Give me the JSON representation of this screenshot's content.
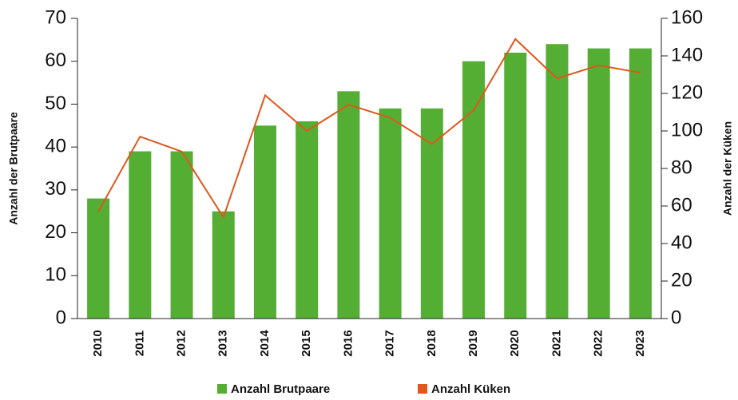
{
  "chart_data": {
    "type": "bar",
    "categories": [
      "2010",
      "2011",
      "2012",
      "2013",
      "2014",
      "2015",
      "2016",
      "2017",
      "2018",
      "2019",
      "2020",
      "2021",
      "2022",
      "2023"
    ],
    "series": [
      {
        "name": "Anzahl Brutpaare",
        "color": "#55ae34",
        "type": "bar",
        "values": [
          28,
          39,
          39,
          25,
          45,
          46,
          53,
          49,
          49,
          60,
          62,
          64,
          63,
          63
        ]
      },
      {
        "name": "Anzahl Küken",
        "color": "#e0561b",
        "type": "line",
        "axis": "y2",
        "values": [
          57,
          97,
          89,
          54,
          119,
          100,
          114,
          107,
          93,
          111,
          149,
          128,
          135,
          131
        ]
      }
    ],
    "ylabel": "Anzahl der Brutpaare",
    "y2label": "Anzahl der Küken",
    "ylim": [
      0,
      70
    ],
    "yticks": [
      0,
      10,
      20,
      30,
      40,
      50,
      60,
      70
    ],
    "y2lim": [
      0,
      160
    ],
    "y2ticks": [
      0,
      20,
      40,
      60,
      80,
      100,
      120,
      140,
      160
    ],
    "legend": "bottom"
  }
}
